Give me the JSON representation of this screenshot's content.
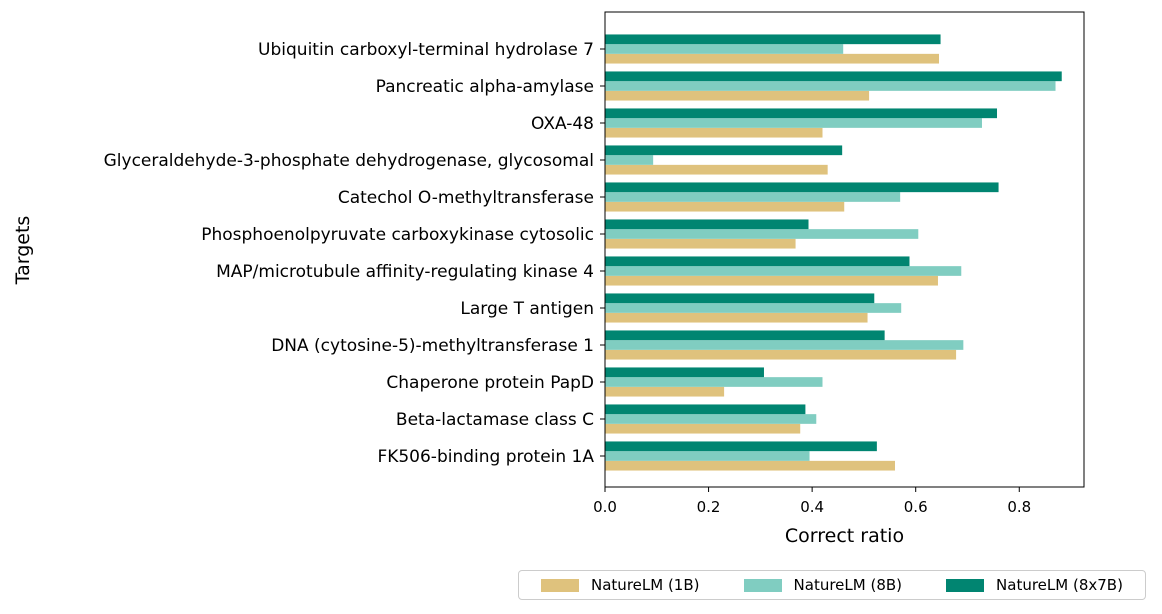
{
  "chart_data": {
    "type": "bar",
    "orientation": "horizontal",
    "title": "",
    "xlabel": "Correct ratio",
    "ylabel": "Targets",
    "xlim": [
      0,
      0.925
    ],
    "xticks": [
      0.0,
      0.2,
      0.4,
      0.6,
      0.8
    ],
    "xtick_labels": [
      "0.0",
      "0.2",
      "0.4",
      "0.6",
      "0.8"
    ],
    "grid": false,
    "legend_position": "bottom-right",
    "categories": [
      "Ubiquitin carboxyl-terminal hydrolase 7",
      "Pancreatic alpha-amylase",
      "OXA-48",
      "Glyceraldehyde-3-phosphate dehydrogenase, glycosomal",
      "Catechol O-methyltransferase",
      "Phosphoenolpyruvate carboxykinase cytosolic",
      "MAP/microtubule affinity-regulating kinase 4",
      "Large T antigen",
      "DNA (cytosine-5)-methyltransferase 1",
      "Chaperone protein PapD",
      "Beta-lactamase class C",
      "FK506-binding protein 1A"
    ],
    "series": [
      {
        "name": "NatureLM (1B)",
        "color": "#dfc27d",
        "values": [
          0.645,
          0.51,
          0.42,
          0.43,
          0.462,
          0.368,
          0.643,
          0.507,
          0.678,
          0.23,
          0.377,
          0.56
        ]
      },
      {
        "name": "NatureLM (8B)",
        "color": "#80cdc1",
        "values": [
          0.46,
          0.87,
          0.728,
          0.093,
          0.57,
          0.605,
          0.688,
          0.572,
          0.692,
          0.42,
          0.408,
          0.395
        ]
      },
      {
        "name": "NatureLM (8x7B)",
        "color": "#018571",
        "values": [
          0.648,
          0.882,
          0.757,
          0.458,
          0.76,
          0.393,
          0.588,
          0.52,
          0.54,
          0.307,
          0.387,
          0.525
        ]
      }
    ]
  }
}
